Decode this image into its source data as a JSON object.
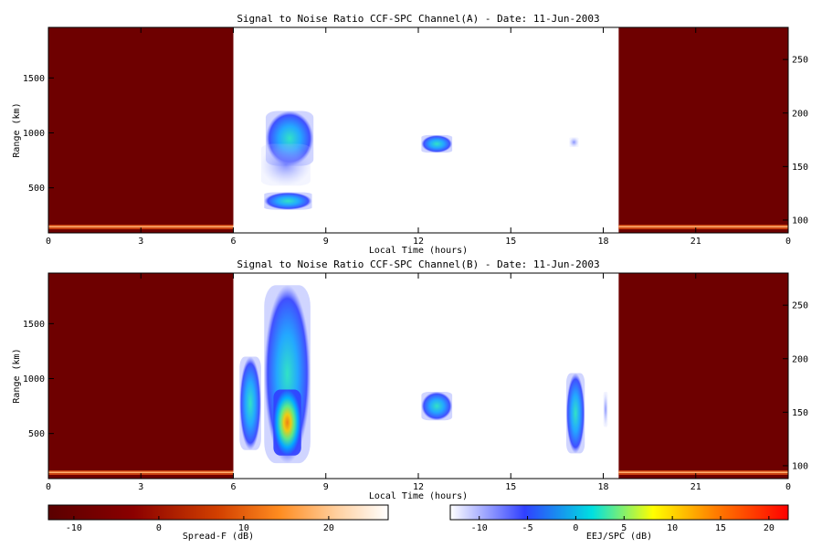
{
  "chart_data": [
    {
      "type": "heatmap",
      "title": "Signal to Noise Ratio CCF-SPC Channel(A) - Date: 11-Jun-2003",
      "xlabel": "Local Time (hours)",
      "ylabel": "Range (km)",
      "x_ticks": [
        "0",
        "3",
        "6",
        "9",
        "12",
        "15",
        "18",
        "21",
        "0"
      ],
      "y_ticks": [
        500,
        1000,
        1500
      ],
      "y2_ticks": [
        100,
        150,
        200,
        250
      ],
      "xlim": [
        0,
        24
      ],
      "ylim": [
        90,
        1960
      ],
      "y2lim": [
        88,
        280
      ],
      "spreadf_regions": [
        [
          0,
          6
        ],
        [
          18.5,
          24
        ]
      ],
      "blobs": [
        {
          "t0": 7.05,
          "t1": 8.6,
          "r0": 700,
          "r1": 1200,
          "intensity": 0.55
        },
        {
          "t0": 7.0,
          "t1": 8.55,
          "r0": 300,
          "r1": 460,
          "intensity": 0.5
        },
        {
          "t0": 6.9,
          "t1": 8.5,
          "r0": 520,
          "r1": 900,
          "intensity": 0.18
        },
        {
          "t0": 12.1,
          "t1": 13.1,
          "r0": 820,
          "r1": 980,
          "intensity": 0.5
        },
        {
          "t0": 16.9,
          "t1": 17.2,
          "r0": 870,
          "r1": 960,
          "intensity": 0.2
        }
      ]
    },
    {
      "type": "heatmap",
      "title": "Signal to Noise Ratio CCF-SPC Channel(B) - Date: 11-Jun-2003",
      "xlabel": "Local Time (hours)",
      "ylabel": "Range (km)",
      "x_ticks": [
        "0",
        "3",
        "6",
        "9",
        "12",
        "15",
        "18",
        "21",
        "0"
      ],
      "y_ticks": [
        500,
        1000,
        1500
      ],
      "y2_ticks": [
        100,
        150,
        200,
        250
      ],
      "xlim": [
        0,
        24
      ],
      "ylim": [
        90,
        1960
      ],
      "y2lim": [
        88,
        280
      ],
      "spreadf_regions": [
        [
          0,
          6
        ],
        [
          18.5,
          24
        ]
      ],
      "blobs": [
        {
          "t0": 6.2,
          "t1": 6.9,
          "r0": 350,
          "r1": 1200,
          "intensity": 0.35
        },
        {
          "t0": 7.0,
          "t1": 8.5,
          "r0": 230,
          "r1": 1850,
          "intensity": 0.45
        },
        {
          "t0": 7.3,
          "t1": 8.2,
          "r0": 300,
          "r1": 900,
          "intensity": 0.9
        },
        {
          "t0": 12.1,
          "t1": 13.1,
          "r0": 620,
          "r1": 880,
          "intensity": 0.38
        },
        {
          "t0": 16.8,
          "t1": 17.4,
          "r0": 320,
          "r1": 1050,
          "intensity": 0.35
        },
        {
          "t0": 18.0,
          "t1": 18.15,
          "r0": 560,
          "r1": 880,
          "intensity": 0.2
        }
      ]
    }
  ],
  "colorbars": [
    {
      "label": "Spread-F (dB)",
      "ticks": [
        "-10",
        "0",
        "10",
        "20"
      ],
      "range": [
        -13,
        27
      ],
      "colors": [
        "#5a0000",
        "#8b0000",
        "#d24000",
        "#ff8c20",
        "#ffd0a0",
        "#ffffff"
      ]
    },
    {
      "label": "EEJ/SPC (dB)",
      "ticks": [
        "-10",
        "-5",
        "0",
        "5",
        "10",
        "15",
        "20"
      ],
      "range": [
        -13,
        22
      ],
      "colors": [
        "#ffffff",
        "#3040ff",
        "#00e0e0",
        "#ffff00",
        "#ff8000",
        "#ff0000"
      ]
    }
  ]
}
